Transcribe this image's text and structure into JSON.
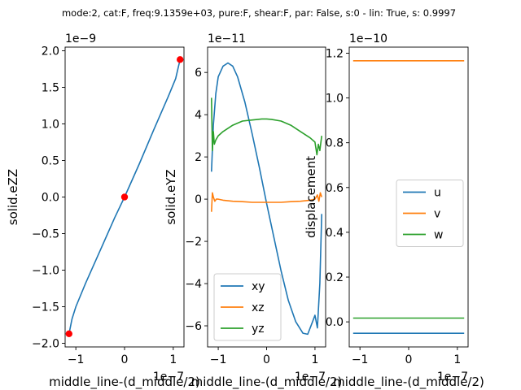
{
  "suptitle": "mode:2, cat:F, freq:9.1359e+03, pure:F, shear:F, par: False, s:0 - lin: True, s: 0.9997",
  "colors": {
    "blue": "#1f77b4",
    "orange": "#ff7f0e",
    "green": "#2ca02c",
    "red": "#ff0000"
  },
  "chart_data": [
    {
      "type": "line",
      "xlabel": "middle_line-(d_middle/2)",
      "ylabel": "solid.eZZ",
      "x_offset_text": "1e−7",
      "y_offset_text": "1e−9",
      "xlim": [
        -1.22,
        1.22
      ],
      "ylim": [
        -2.05,
        2.05
      ],
      "xticks": [
        -1,
        0,
        1
      ],
      "xtick_labels": [
        "−1",
        "0",
        "1"
      ],
      "yticks": [
        -2.0,
        -1.5,
        -1.0,
        -0.5,
        0.0,
        0.5,
        1.0,
        1.5,
        2.0
      ],
      "ytick_labels": [
        "−2.0",
        "−1.5",
        "−1.0",
        "−0.5",
        "0.0",
        "0.5",
        "1.0",
        "1.5",
        "2.0"
      ],
      "series": [
        {
          "color": "blue",
          "x": [
            -1.14,
            -1.08,
            -1.0,
            -0.8,
            -0.5,
            -0.2,
            0.0,
            0.3,
            0.6,
            0.9,
            1.05,
            1.14
          ],
          "y": [
            -1.87,
            -1.67,
            -1.5,
            -1.18,
            -0.73,
            -0.28,
            0.0,
            0.45,
            0.92,
            1.38,
            1.62,
            1.88
          ]
        }
      ],
      "points": {
        "color": "red",
        "x": [
          -1.14,
          0.0,
          1.14
        ],
        "y": [
          -1.87,
          0.0,
          1.88
        ]
      }
    },
    {
      "type": "line",
      "xlabel": "middle_line-(d_middle/2)",
      "ylabel": "solid.eYZ",
      "x_offset_text": "1e−7",
      "y_offset_text": "1e−11",
      "xlim": [
        -1.22,
        1.22
      ],
      "ylim": [
        -7.0,
        7.2
      ],
      "xticks": [
        -1,
        0,
        1
      ],
      "xtick_labels": [
        "−1",
        "0",
        "1"
      ],
      "yticks": [
        -6,
        -4,
        -2,
        0,
        2,
        4,
        6
      ],
      "ytick_labels": [
        "−6",
        "−4",
        "−2",
        "0",
        "2",
        "4",
        "6"
      ],
      "legend": {
        "position": "lower-left",
        "entries": [
          "xy",
          "xz",
          "yz"
        ]
      },
      "series": [
        {
          "name": "xy",
          "color": "blue",
          "x": [
            -1.14,
            -1.1,
            -1.05,
            -1.0,
            -0.9,
            -0.8,
            -0.7,
            -0.6,
            -0.45,
            -0.3,
            -0.15,
            0.0,
            0.15,
            0.3,
            0.45,
            0.6,
            0.75,
            0.85,
            0.95,
            1.0,
            1.05,
            1.1,
            1.14
          ],
          "y": [
            1.3,
            3.5,
            5.0,
            5.8,
            6.3,
            6.45,
            6.3,
            5.8,
            4.6,
            3.1,
            1.5,
            -0.2,
            -1.8,
            -3.4,
            -4.8,
            -5.8,
            -6.35,
            -6.4,
            -5.8,
            -5.5,
            -6.1,
            -4.0,
            -0.7
          ]
        },
        {
          "name": "xz",
          "color": "orange",
          "x": [
            -1.14,
            -1.12,
            -1.1,
            -1.07,
            -1.04,
            -1.0,
            -0.9,
            -0.7,
            -0.5,
            -0.3,
            -0.1,
            0.1,
            0.3,
            0.5,
            0.7,
            0.9,
            1.0,
            1.05,
            1.08,
            1.11,
            1.14
          ],
          "y": [
            -0.6,
            0.3,
            0.1,
            -0.1,
            0.0,
            0.0,
            -0.05,
            -0.1,
            -0.12,
            -0.15,
            -0.15,
            -0.15,
            -0.15,
            -0.12,
            -0.1,
            -0.05,
            0.0,
            0.2,
            -0.1,
            0.3,
            0.1
          ]
        },
        {
          "name": "yz",
          "color": "green",
          "x": [
            -1.14,
            -1.12,
            -1.1,
            -1.08,
            -1.05,
            -1.0,
            -0.9,
            -0.7,
            -0.5,
            -0.3,
            -0.1,
            0.0,
            0.1,
            0.3,
            0.5,
            0.7,
            0.9,
            1.0,
            1.04,
            1.07,
            1.1,
            1.14
          ],
          "y": [
            4.8,
            2.3,
            3.2,
            2.6,
            2.8,
            3.0,
            3.2,
            3.5,
            3.7,
            3.75,
            3.8,
            3.8,
            3.78,
            3.7,
            3.5,
            3.2,
            2.9,
            2.7,
            2.1,
            2.6,
            2.3,
            3.0
          ]
        }
      ]
    },
    {
      "type": "line",
      "xlabel": "middle_line-(d_middle/2)",
      "ylabel": "displacement",
      "x_offset_text": "1e−7",
      "y_offset_text": "1e−10",
      "xlim": [
        -1.22,
        1.22
      ],
      "ylim": [
        -0.112,
        1.227
      ],
      "xticks": [
        -1,
        0,
        1
      ],
      "xtick_labels": [
        "−1",
        "0",
        "1"
      ],
      "yticks": [
        0.0,
        0.2,
        0.4,
        0.6,
        0.8,
        1.0,
        1.2
      ],
      "ytick_labels": [
        "0.0",
        "0.2",
        "0.4",
        "0.6",
        "0.8",
        "1.0",
        "1.2"
      ],
      "legend": {
        "position": "center-right",
        "entries": [
          "u",
          "v",
          "w"
        ]
      },
      "series": [
        {
          "name": "u",
          "color": "blue",
          "x": [
            -1.14,
            1.14
          ],
          "y": [
            -0.051,
            -0.051
          ]
        },
        {
          "name": "v",
          "color": "orange",
          "x": [
            -1.14,
            1.14
          ],
          "y": [
            1.166,
            1.166
          ]
        },
        {
          "name": "w",
          "color": "green",
          "x": [
            -1.14,
            1.14
          ],
          "y": [
            0.017,
            0.017
          ]
        }
      ]
    }
  ]
}
